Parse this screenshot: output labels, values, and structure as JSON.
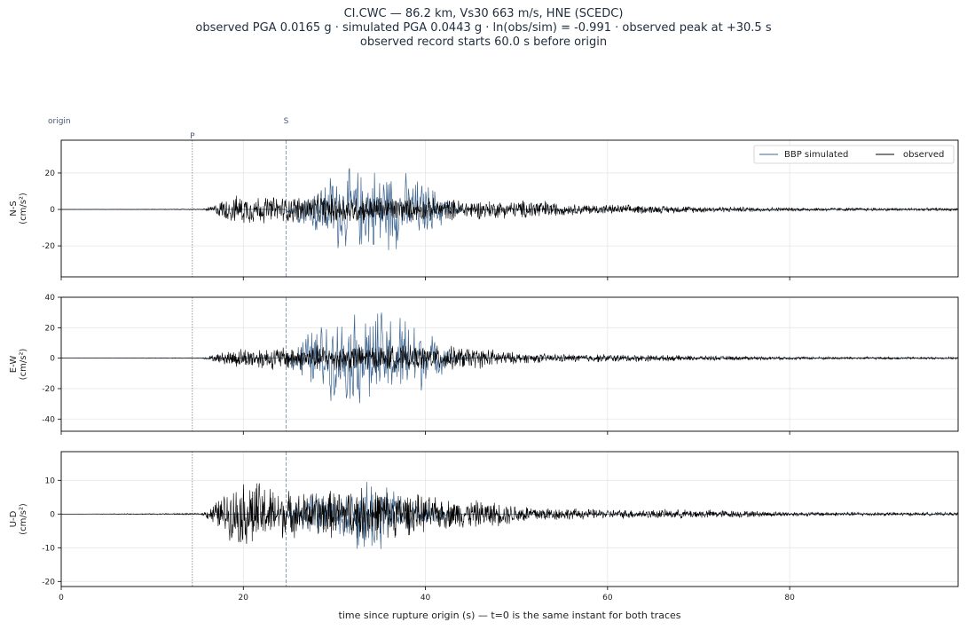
{
  "header": {
    "line1": "CI.CWC  —  86.2 km, Vs30 663 m/s, HNE (SCEDC)",
    "line2": "observed PGA 0.0165 g   ·   simulated PGA 0.0443 g   ·   ln(obs/sim) = -0.991   ·   observed peak at +30.5 s",
    "line3": "observed record starts 60.0 s before origin"
  },
  "chart_data": {
    "type": "line",
    "xlabel": "time since rupture origin (s)   —   t=0 is the same instant for both traces",
    "xlim": [
      0,
      98.5
    ],
    "xticks": [
      0,
      20,
      40,
      60,
      80
    ],
    "grid": true,
    "legend": {
      "placement": "top-right",
      "entries": [
        "BBP simulated",
        "observed"
      ]
    },
    "markers": [
      {
        "label": "origin",
        "t": 0
      },
      {
        "label": "P",
        "t": 14.4
      },
      {
        "label": "S",
        "t": 24.7
      }
    ],
    "series_styles": {
      "BBP simulated": {
        "color": "#3f6690"
      },
      "observed": {
        "color": "#000000"
      }
    },
    "panels": [
      {
        "component": "N-S",
        "ylabel_line1": "N-S",
        "ylabel_line2": "(cm/s²)",
        "ylim": [
          -37,
          38
        ],
        "yticks": [
          -20,
          0,
          20
        ],
        "observed_envelope": [
          [
            0,
            0
          ],
          [
            15.5,
            0.3
          ],
          [
            16.5,
            2
          ],
          [
            18,
            7
          ],
          [
            20,
            9
          ],
          [
            24,
            8
          ],
          [
            28,
            9
          ],
          [
            32,
            9
          ],
          [
            36,
            8
          ],
          [
            40,
            7
          ],
          [
            45,
            6
          ],
          [
            50,
            5
          ],
          [
            52,
            7
          ],
          [
            55,
            3.5
          ],
          [
            60,
            3
          ],
          [
            70,
            2
          ],
          [
            80,
            1.2
          ],
          [
            90,
            1
          ],
          [
            98.5,
            0.9
          ]
        ],
        "simulated_envelope": [
          [
            0,
            0
          ],
          [
            24.6,
            0
          ],
          [
            25.2,
            5
          ],
          [
            27,
            12
          ],
          [
            29,
            20
          ],
          [
            30.5,
            27
          ],
          [
            32,
            24
          ],
          [
            34,
            26
          ],
          [
            35,
            28
          ],
          [
            37,
            24
          ],
          [
            40,
            17
          ],
          [
            42,
            10
          ],
          [
            43.5,
            3
          ],
          [
            44.5,
            0
          ],
          [
            98.5,
            0
          ]
        ]
      },
      {
        "component": "E-W",
        "ylabel_line1": "E-W",
        "ylabel_line2": "(cm/s²)",
        "ylim": [
          -48,
          40
        ],
        "yticks": [
          -40,
          -20,
          0,
          20,
          40
        ],
        "observed_envelope": [
          [
            0,
            0
          ],
          [
            15.5,
            0.3
          ],
          [
            17,
            3
          ],
          [
            19,
            7
          ],
          [
            22,
            8
          ],
          [
            26,
            9
          ],
          [
            30,
            10
          ],
          [
            34,
            10
          ],
          [
            38,
            9
          ],
          [
            42,
            9
          ],
          [
            47,
            7
          ],
          [
            50,
            4
          ],
          [
            55,
            3
          ],
          [
            60,
            3
          ],
          [
            70,
            1.8
          ],
          [
            80,
            1.2
          ],
          [
            90,
            1
          ],
          [
            98.5,
            0.8
          ]
        ],
        "simulated_envelope": [
          [
            0,
            0
          ],
          [
            24.6,
            0
          ],
          [
            25.2,
            8
          ],
          [
            27,
            20
          ],
          [
            29,
            28
          ],
          [
            31,
            30
          ],
          [
            33,
            38
          ],
          [
            35,
            36
          ],
          [
            37,
            32
          ],
          [
            38.5,
            34
          ],
          [
            40,
            20
          ],
          [
            42,
            10
          ],
          [
            44,
            3
          ],
          [
            45,
            0
          ],
          [
            98.5,
            0
          ]
        ]
      },
      {
        "component": "U-D",
        "ylabel_line1": "U-D",
        "ylabel_line2": "(cm/s²)",
        "ylim": [
          -21.5,
          18.5
        ],
        "yticks": [
          -20,
          -10,
          0,
          10
        ],
        "observed_envelope": [
          [
            0,
            0
          ],
          [
            15.5,
            0.3
          ],
          [
            16.5,
            3
          ],
          [
            18,
            7
          ],
          [
            19.5,
            10
          ],
          [
            21,
            12
          ],
          [
            23,
            9
          ],
          [
            26,
            7
          ],
          [
            30,
            8
          ],
          [
            34,
            9
          ],
          [
            38,
            7
          ],
          [
            42,
            5
          ],
          [
            46,
            4.5
          ],
          [
            51,
            3
          ],
          [
            55,
            2
          ],
          [
            60,
            1.5
          ],
          [
            70,
            1.5
          ],
          [
            80,
            0.8
          ],
          [
            98.5,
            0.5
          ]
        ],
        "simulated_envelope": [
          [
            0,
            0
          ],
          [
            24.6,
            0
          ],
          [
            25.2,
            4
          ],
          [
            27,
            7
          ],
          [
            29,
            8
          ],
          [
            31,
            9
          ],
          [
            33,
            13
          ],
          [
            34.5,
            15
          ],
          [
            36,
            9
          ],
          [
            38,
            6
          ],
          [
            40,
            4
          ],
          [
            42,
            2
          ],
          [
            44,
            0
          ],
          [
            98.5,
            0
          ]
        ]
      }
    ]
  }
}
